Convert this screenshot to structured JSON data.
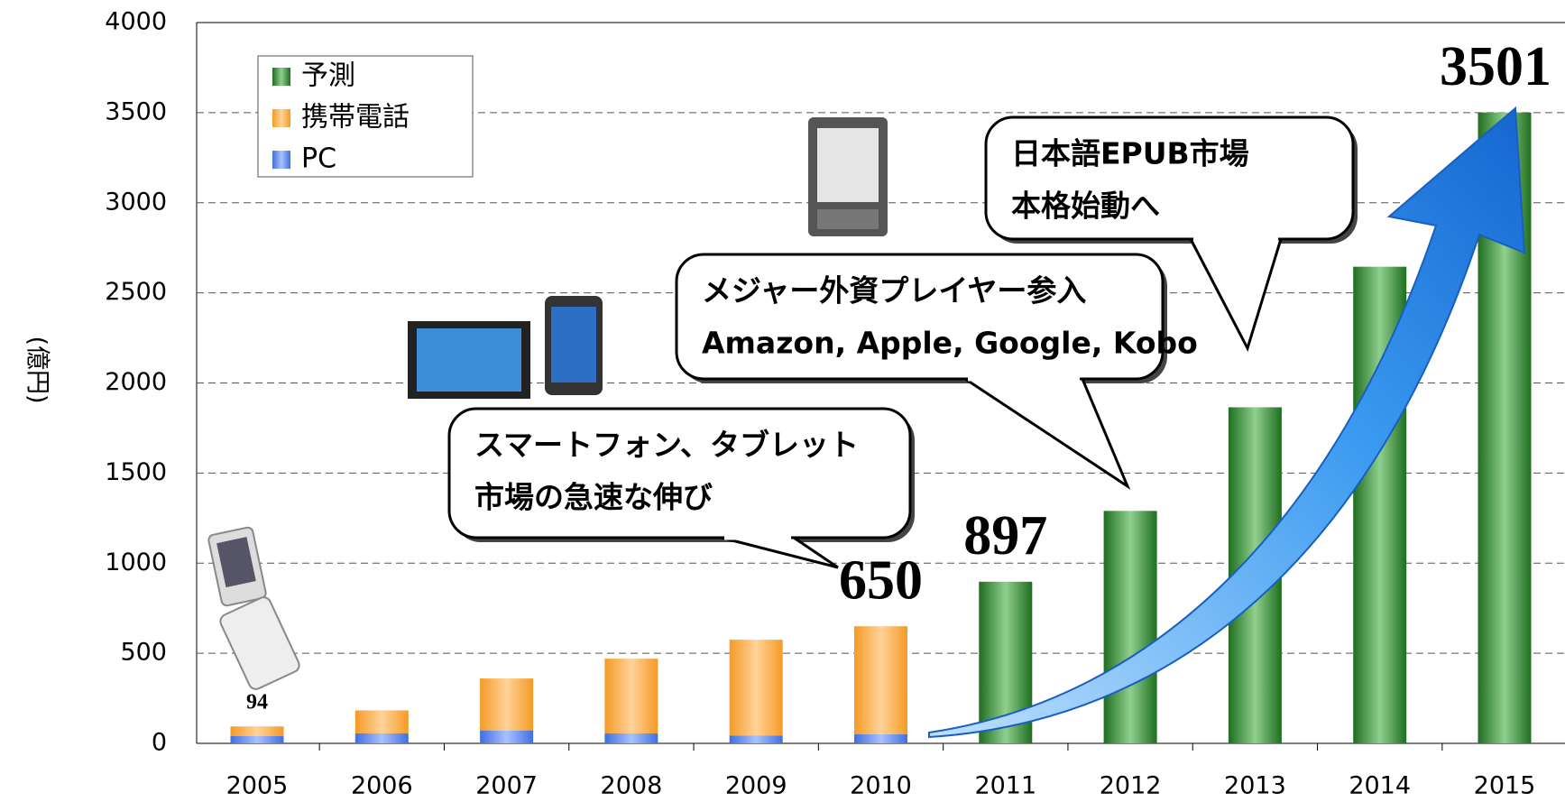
{
  "chart_data": {
    "type": "stacked-bar",
    "y_label": "(億円)",
    "categories": [
      "2005",
      "2006",
      "2007",
      "2008",
      "2009",
      "2010",
      "2011",
      "2012",
      "2013",
      "2014",
      "2015"
    ],
    "series": [
      {
        "name": "予測",
        "color": "#2e8b2e",
        "values": [
          null,
          null,
          null,
          null,
          null,
          null,
          897,
          1290,
          1865,
          2645,
          3501
        ]
      },
      {
        "name": "携帯電話",
        "color": "#f7a43a",
        "values": [
          54,
          128,
          288,
          415,
          531,
          600,
          null,
          null,
          null,
          null,
          null
        ]
      },
      {
        "name": "PC",
        "color": "#5b86e8",
        "values": [
          40,
          55,
          72,
          55,
          44,
          50,
          null,
          null,
          null,
          null,
          null
        ]
      }
    ],
    "totals": [
      94,
      null,
      null,
      null,
      null,
      650,
      897,
      null,
      null,
      null,
      3501
    ],
    "ylim": [
      0,
      4000
    ],
    "yticks": [
      0,
      500,
      1000,
      1500,
      2000,
      2500,
      3000,
      3500,
      4000
    ],
    "grid": true,
    "legend": "top-left",
    "annotations": [
      [
        "スマートフォン、タブレット",
        "市場の急速な伸び"
      ],
      [
        "メジャー外資プレイヤー参入",
        "Amazon, Apple, Google, Kobo"
      ],
      [
        "日本語EPUB市場",
        "本格始動へ"
      ]
    ]
  }
}
